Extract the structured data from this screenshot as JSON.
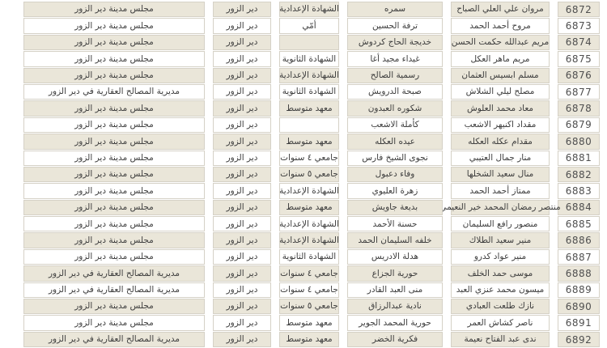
{
  "colors": {
    "row_alt": "#eae6d9",
    "row_bg": "#ffffff",
    "border": "#d5d1c6",
    "text": "#3d3d3d",
    "number_text": "#4f4f4f"
  },
  "table": {
    "direction": "rtl",
    "field_order": [
      "id",
      "name",
      "mother",
      "education",
      "residence",
      "org"
    ],
    "rows": [
      {
        "id": "6872",
        "name": "مروان علي العلي الصباح",
        "mother": "سمره",
        "education": "الشهادة الإعدادية",
        "residence": "دير الزور",
        "org": "مجلس مدينة دير الزور"
      },
      {
        "id": "6873",
        "name": "مروح أحمد الحمد",
        "mother": "ترفة الحسين",
        "education": "أمّي",
        "residence": "دير الزور",
        "org": "مجلس مدينة دير الزور"
      },
      {
        "id": "6874",
        "name": "مريم عبدالله حكمت الحسن",
        "mother": "خديجة الحاج كردوش",
        "education": "",
        "residence": "دير الزور",
        "org": "مجلس مدينة دير الزور"
      },
      {
        "id": "6875",
        "name": "مريم ماهر العكل",
        "mother": "غيداء مجيد أغا",
        "education": "الشهادة الثانوية",
        "residence": "دير الزور",
        "org": "مجلس مدينة دير الزور"
      },
      {
        "id": "6876",
        "name": "مسلم ابسيس العثمان",
        "mother": "رسمية الصالح",
        "education": "الشهادة الإعدادية",
        "residence": "دير الزور",
        "org": "مجلس مدينة دير الزور"
      },
      {
        "id": "6877",
        "name": "مصلح ليلي الشلاش",
        "mother": "صبحة الدرويش",
        "education": "الشهادة الثانوية",
        "residence": "دير الزور",
        "org": "مديرية المصالح العقارية في دير الزور"
      },
      {
        "id": "6878",
        "name": "معاد محمد العلوش",
        "mother": "شكوره العبدون",
        "education": "معهد متوسط",
        "residence": "دير الزور",
        "org": "مجلس مدينة دير الزور"
      },
      {
        "id": "6879",
        "name": "مقداد اكنيهر الاشعب",
        "mother": "كأملة الاشعب",
        "education": "",
        "residence": "دير الزور",
        "org": "مجلس مدينة دير الزور"
      },
      {
        "id": "6880",
        "name": "مقدام عكله العكله",
        "mother": "عيده العكله",
        "education": "معهد متوسط",
        "residence": "دير الزور",
        "org": "مجلس مدينة دير الزور"
      },
      {
        "id": "6881",
        "name": "منار جمال العتيبي",
        "mother": "نجوى الشيخ فارس",
        "education": "جامعي ٤ سنوات",
        "residence": "دير الزور",
        "org": "مجلس مدينة دير الزور"
      },
      {
        "id": "6882",
        "name": "منال سعيد الشخلها",
        "mother": "وفاء دعبول",
        "education": "جامعي ٥ سنوات",
        "residence": "دير الزور",
        "org": "مجلس مدينة دير الزور"
      },
      {
        "id": "6883",
        "name": "ممتاز أحمد الحمد",
        "mother": "زهرة العليوي",
        "education": "الشهادة الإعدادية",
        "residence": "دير الزور",
        "org": "مجلس مدينة دير الزور"
      },
      {
        "id": "6884",
        "name": "منتصر رمضان المحمد خير النعيمي",
        "mother": "بديعة جاويش",
        "education": "معهد متوسط",
        "residence": "دير الزور",
        "org": "مجلس مدينة دير الزور"
      },
      {
        "id": "6885",
        "name": "منصور رافع السليمان",
        "mother": "حسنة الأحمد",
        "education": "الشهادة الإعدادية",
        "residence": "دير الزور",
        "org": "مجلس مدينة دير الزور"
      },
      {
        "id": "6886",
        "name": "منير سعيد الطلاك",
        "mother": "خلفه السليمان الحمد",
        "education": "الشهادة الإعدادية",
        "residence": "دير الزور",
        "org": "مجلس مدينة دير الزور"
      },
      {
        "id": "6887",
        "name": "منير عواد كدرو",
        "mother": "هدلة الادريس",
        "education": "الشهادة الثانوية",
        "residence": "دير الزور",
        "org": "مجلس مدينة دير الزور"
      },
      {
        "id": "6888",
        "name": "موسى حمد الخلف",
        "mother": "حورية الجزاع",
        "education": "جامعي ٤ سنوات",
        "residence": "دير الزور",
        "org": "مديرية المصالح العقارية في دير الزور"
      },
      {
        "id": "6889",
        "name": "ميسون محمد عنزي العبد",
        "mother": "منى العبد القادر",
        "education": "جامعي ٤ سنوات",
        "residence": "دير الزور",
        "org": "مديرية المصالح العقارية في دير الزور"
      },
      {
        "id": "6890",
        "name": "نازك طلعت العبادي",
        "mother": "نادية عبدالرزاق",
        "education": "جامعي ٥ سنوات",
        "residence": "دير الزور",
        "org": "مجلس مدينة دير الزور"
      },
      {
        "id": "6891",
        "name": "ناصر كشاش العمر",
        "mother": "حورية المحمد الجوير",
        "education": "معهد متوسط",
        "residence": "دير الزور",
        "org": "مجلس مدينة دير الزور"
      },
      {
        "id": "6892",
        "name": "ندى عبد الفتاح نعيمة",
        "mother": "فكرية الخضر",
        "education": "معهد متوسط",
        "residence": "دير الزور",
        "org": "مديرية المصالح العقارية في دير الزور"
      }
    ]
  }
}
